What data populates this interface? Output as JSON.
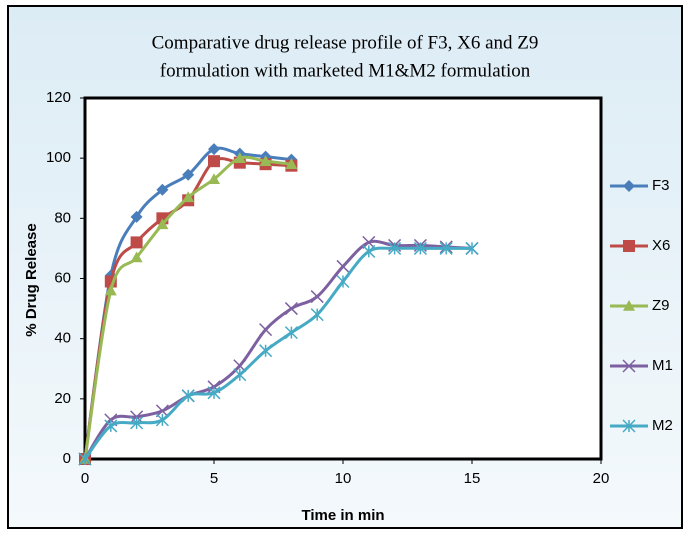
{
  "chart_data": {
    "type": "line",
    "title": "Comparative drug release profile of F3, X6 and Z9",
    "subtitle": "formulation with marketed M1&M2 formulation",
    "x_label": "Time in min",
    "y_label": "% Drug Release",
    "xlim": [
      0,
      20
    ],
    "xticks": [
      0,
      5,
      10,
      15,
      20
    ],
    "ylim": [
      0,
      120
    ],
    "yticks": [
      0,
      20,
      40,
      60,
      80,
      100,
      120
    ],
    "grid": false,
    "smooth": true,
    "legend": "right",
    "series": [
      {
        "name": "F3",
        "color": "#4a7ebb",
        "marker": "diamond",
        "x": [
          0,
          1,
          2,
          3,
          4,
          5,
          6,
          7,
          8
        ],
        "values": [
          0,
          61,
          80.5,
          89.5,
          94.5,
          103,
          101.5,
          100.5,
          99.5
        ]
      },
      {
        "name": "X6",
        "color": "#be4b48",
        "marker": "square",
        "x": [
          0,
          1,
          2,
          3,
          4,
          5,
          6,
          7,
          8
        ],
        "values": [
          0,
          59,
          72,
          80,
          86,
          99,
          98.5,
          98,
          97.5
        ]
      },
      {
        "name": "Z9",
        "color": "#98b954",
        "marker": "triangle",
        "x": [
          0,
          1,
          2,
          3,
          4,
          5,
          6,
          7,
          8
        ],
        "values": [
          0,
          56,
          67,
          78,
          87,
          93,
          100,
          99,
          98
        ]
      },
      {
        "name": "M1",
        "color": "#7d60a0",
        "marker": "cross",
        "x": [
          0,
          1,
          2,
          3,
          4,
          5,
          6,
          7,
          8,
          9,
          10,
          11,
          12,
          13,
          14,
          15
        ],
        "values": [
          0,
          13,
          14,
          16,
          21,
          24,
          31,
          43,
          50,
          54,
          64,
          72,
          71,
          71,
          70.5,
          70
        ]
      },
      {
        "name": "M2",
        "color": "#46aac5",
        "marker": "star",
        "x": [
          0,
          1,
          2,
          3,
          4,
          5,
          6,
          7,
          8,
          9,
          10,
          11,
          12,
          13,
          14,
          15
        ],
        "values": [
          0,
          11,
          12,
          13,
          21,
          22,
          28,
          36,
          42,
          48,
          59,
          69,
          70,
          70,
          70,
          70
        ]
      }
    ]
  }
}
